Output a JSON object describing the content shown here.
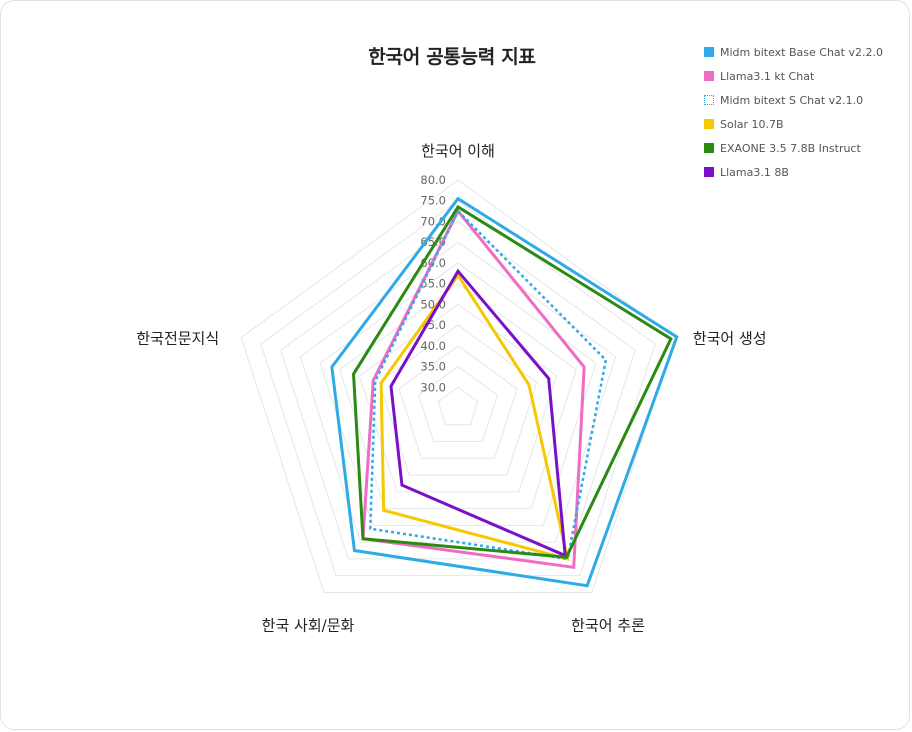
{
  "chart_data": {
    "type": "radar",
    "title": "한국어 공통능력 지표",
    "axes": [
      "한국어 이해",
      "한국어 생성",
      "한국어 추론",
      "한국 사회/문화",
      "한국전문지식"
    ],
    "ticks": [
      "30.0",
      "35.0",
      "40.0",
      "45.0",
      "50.0",
      "55.0",
      "60.0",
      "65.0",
      "70.0",
      "75.0",
      "80.0"
    ],
    "rlim": [
      25,
      80
    ],
    "grid": true,
    "legend_position": "top-right",
    "series": [
      {
        "name": "Midm bitext Base Chat v2.2.0",
        "color": "#2eaae5",
        "dashed": false,
        "values": [
          75.5,
          80.5,
          78.0,
          67.5,
          57.0
        ]
      },
      {
        "name": "Llama3.1 kt Chat",
        "color": "#f06bc2",
        "dashed": false,
        "values": [
          72.5,
          57.0,
          72.5,
          64.0,
          46.5
        ]
      },
      {
        "name": "Midm bitext S Chat v2.1.0",
        "color": "#2eaae5",
        "dashed": true,
        "values": [
          72.5,
          62.5,
          70.0,
          61.0,
          46.0
        ]
      },
      {
        "name": "Solar 10.7B",
        "color": "#f5c800",
        "dashed": false,
        "values": [
          57.0,
          43.0,
          70.0,
          55.5,
          44.5
        ]
      },
      {
        "name": "EXAONE 3.5 7.8B Instruct",
        "color": "#2a8a12",
        "dashed": false,
        "values": [
          73.5,
          79.0,
          69.5,
          64.0,
          51.5
        ]
      },
      {
        "name": "Llama3.1 8B",
        "color": "#7a10c8",
        "dashed": false,
        "values": [
          58.0,
          48.0,
          69.0,
          48.0,
          42.0
        ]
      }
    ]
  }
}
